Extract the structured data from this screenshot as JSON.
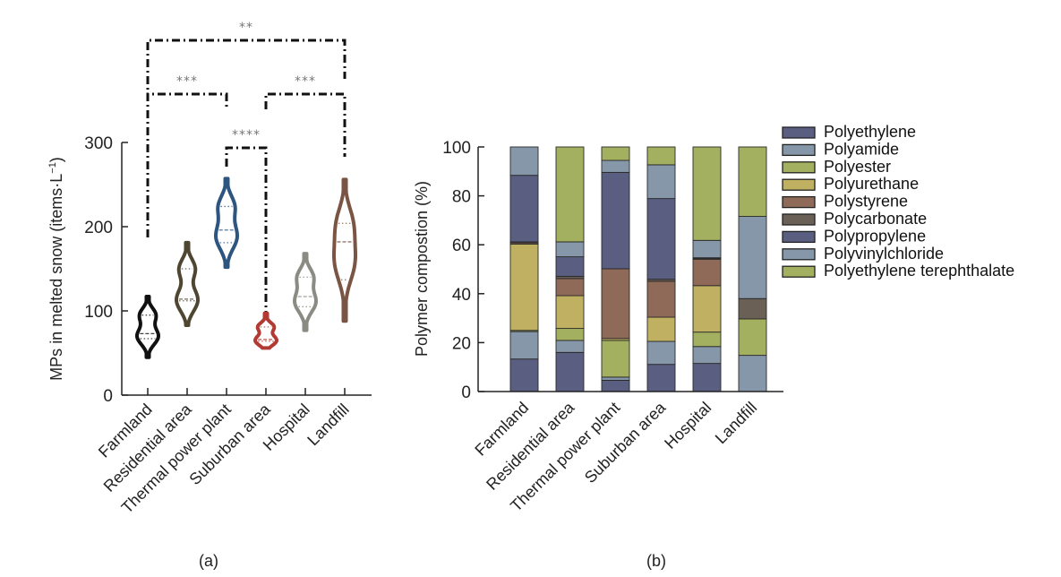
{
  "chart_data": [
    {
      "panel": "(a)",
      "type": "violin",
      "title": "",
      "xlabel": "",
      "ylabel": "MPs in melted snow (items·L⁻¹)",
      "ylabel_main": "MPs in melted snow (items·L",
      "ylabel_sup": "−1",
      "ylabel_end": ")",
      "ylim": [
        0,
        300
      ],
      "yticks": [
        0,
        100,
        200,
        300
      ],
      "grid": false,
      "categories": [
        "Farmland",
        "Residential area",
        "Thermal power plant",
        "Suburban area",
        "Hospital",
        "Landfill"
      ],
      "series": [
        {
          "name": "Farmland",
          "color": "#111111",
          "min": 45,
          "q1": 67,
          "median": 73,
          "q3": 95,
          "max": 117
        },
        {
          "name": "Residential area",
          "color": "#4f4632",
          "min": 83,
          "q1": 112,
          "median": 114,
          "q3": 150,
          "max": 181
        },
        {
          "name": "Thermal power plant",
          "color": "#2d5580",
          "min": 152,
          "q1": 181,
          "median": 196,
          "q3": 224,
          "max": 257
        },
        {
          "name": "Suburban area",
          "color": "#b23a33",
          "min": 56,
          "q1": 64,
          "median": 66,
          "q3": 81,
          "max": 97
        },
        {
          "name": "Hospital",
          "color": "#8a8c84",
          "min": 77,
          "q1": 105,
          "median": 117,
          "q3": 140,
          "max": 168
        },
        {
          "name": "Landfill",
          "color": "#7a5544",
          "min": 88,
          "q1": 137,
          "median": 182,
          "q3": 204,
          "max": 256
        }
      ],
      "significance": [
        {
          "from": "Farmland",
          "to": "Landfill",
          "label": "**"
        },
        {
          "from": "Farmland",
          "to": "Thermal power plant",
          "label": "***"
        },
        {
          "from": "Suburban area",
          "to": "Landfill",
          "label": "***"
        },
        {
          "from": "Thermal power plant",
          "to": "Suburban area",
          "label": "****"
        }
      ],
      "caption": "(a)"
    },
    {
      "panel": "(b)",
      "type": "bar",
      "stacked": true,
      "title": "",
      "xlabel": "",
      "ylabel": "Polymer compostion (%)",
      "ylim": [
        0,
        100
      ],
      "yticks": [
        0,
        20,
        40,
        60,
        80,
        100
      ],
      "grid": false,
      "legend_position": "right",
      "categories": [
        "Farmland",
        "Residential area",
        "Thermal power plant",
        "Suburban area",
        "Hospital",
        "Landfill"
      ],
      "series": [
        {
          "name": "Polyethylene",
          "color": "#5a5f82",
          "values": [
            13.3,
            16.0,
            4.6,
            11.1,
            11.5,
            0
          ]
        },
        {
          "name": "Polyamide",
          "color": "#8597a8",
          "values": [
            11.2,
            4.9,
            1.3,
            9.4,
            6.9,
            14.8
          ]
        },
        {
          "name": "Polyester",
          "color": "#a3b060",
          "values": [
            0.5,
            4.9,
            15.0,
            0,
            5.9,
            14.9
          ]
        },
        {
          "name": "Polyurethane",
          "color": "#bfb062",
          "values": [
            35.3,
            13.4,
            0.8,
            9.9,
            19.0,
            0
          ]
        },
        {
          "name": "Polystyrene",
          "color": "#8f6a58",
          "values": [
            0.5,
            7.0,
            28.5,
            14.7,
            10.8,
            0
          ]
        },
        {
          "name": "Polycarbonate",
          "color": "#6b6055",
          "values": [
            0.4,
            0.9,
            0,
            0.8,
            0.3,
            8.3
          ]
        },
        {
          "name": "Polypropylene",
          "color": "#5a5f82",
          "values": [
            27.2,
            8.0,
            39.4,
            33.0,
            0.3,
            0
          ]
        },
        {
          "name": "Polyvinylchloride",
          "color": "#8597a8",
          "values": [
            11.6,
            6.1,
            4.9,
            13.8,
            7.1,
            33.6
          ]
        },
        {
          "name": "Polyethylene terephthalate",
          "color": "#a3b060",
          "values": [
            0,
            38.8,
            5.5,
            7.3,
            38.2,
            28.4
          ]
        }
      ],
      "caption": "(b)"
    }
  ]
}
